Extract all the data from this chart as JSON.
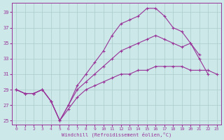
{
  "xlabel": "Windchill (Refroidissement éolien,°C)",
  "xlim": [
    0,
    23
  ],
  "ylim": [
    25,
    40
  ],
  "yticks": [
    25,
    27,
    29,
    31,
    33,
    35,
    37,
    39
  ],
  "xticks": [
    0,
    1,
    2,
    3,
    4,
    5,
    6,
    7,
    8,
    9,
    10,
    11,
    12,
    13,
    14,
    15,
    16,
    17,
    18,
    19,
    20,
    21,
    22,
    23
  ],
  "bg_color": "#cce8e8",
  "line_color": "#993399",
  "grid_color": "#aacccc",
  "line1_x": [
    0,
    1,
    2,
    3,
    4,
    5,
    6,
    7,
    8,
    9,
    10,
    11,
    12,
    13,
    14,
    15,
    16,
    17,
    18,
    19,
    20,
    21,
    22,
    23
  ],
  "line1_y": [
    29,
    28.5,
    28.5,
    29,
    27.5,
    25,
    27,
    29.5,
    31,
    32.5,
    34,
    36,
    37.5,
    38,
    38.5,
    39.5,
    39.5,
    38.5,
    37,
    36.5,
    35,
    33.5,
    null,
    null
  ],
  "line2_x": [
    0,
    1,
    2,
    3,
    4,
    5,
    6,
    7,
    8,
    9,
    10,
    11,
    12,
    13,
    14,
    15,
    16,
    17,
    18,
    19,
    20,
    21,
    22,
    23
  ],
  "line2_y": [
    29,
    28.5,
    28.5,
    29,
    27.5,
    25,
    27,
    29,
    30,
    31,
    32,
    33,
    34,
    34.5,
    35,
    35.5,
    36,
    35.5,
    35,
    34.5,
    35,
    33,
    31,
    null
  ],
  "line3_x": [
    0,
    1,
    2,
    3,
    4,
    5,
    6,
    7,
    8,
    9,
    10,
    11,
    12,
    13,
    14,
    15,
    16,
    17,
    18,
    19,
    20,
    21,
    22,
    23
  ],
  "line3_y": [
    29,
    28.5,
    28.5,
    29,
    27.5,
    25,
    26.5,
    28,
    29,
    29.5,
    30,
    30.5,
    31,
    31,
    31.5,
    31.5,
    32,
    32,
    32,
    32,
    31.5,
    31.5,
    31.5,
    31
  ]
}
